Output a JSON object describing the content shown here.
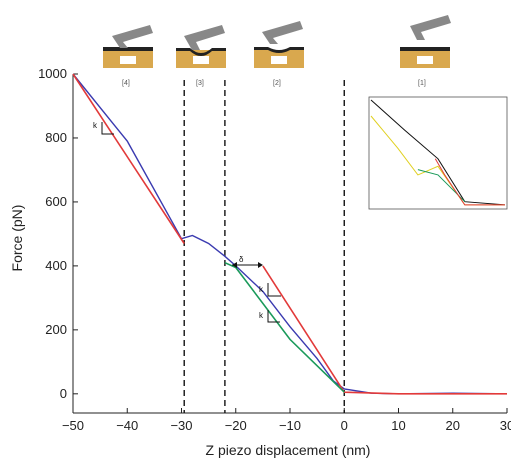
{
  "chart_data": {
    "type": "line",
    "xlabel": "Z piezo displacement (nm)",
    "ylabel": "Force (pN)",
    "xlim": [
      -50,
      30
    ],
    "ylim": [
      -60,
      1000
    ],
    "x_ticks": [
      -50,
      -40,
      -30,
      -20,
      -10,
      0,
      10,
      20,
      30
    ],
    "y_ticks": [
      0,
      200,
      400,
      600,
      800,
      1000
    ],
    "grid": false,
    "dashed_lines_x": [
      -29.5,
      -22,
      0
    ],
    "stage_labels": [
      "[4]",
      "[3]",
      "[2]",
      "[1]"
    ],
    "annotations": {
      "slope_k_upper": "k",
      "slope_k_mid1": "k",
      "slope_k_mid2": "k",
      "delta": "δ"
    },
    "series": [
      {
        "color": "#3a3ab0",
        "x": [
          -50,
          -40,
          -30,
          -28,
          -25,
          -22,
          -20,
          -15,
          -10,
          -5,
          -2,
          0,
          5,
          10,
          20,
          30
        ],
        "y": [
          1000,
          790,
          485,
          495,
          470,
          430,
          400,
          320,
          210,
          110,
          40,
          15,
          2,
          0,
          2,
          0
        ]
      },
      {
        "color": "#e23a3a",
        "x": [
          -50,
          -29.5
        ],
        "y": [
          1000,
          470
        ]
      },
      {
        "color": "#e23a3a",
        "x": [
          -15,
          0,
          10,
          30
        ],
        "y": [
          400,
          5,
          0,
          0
        ]
      },
      {
        "color": "#1a9a5a",
        "x": [
          -22,
          -20,
          -10,
          0
        ],
        "y": [
          410,
          395,
          170,
          5
        ]
      }
    ],
    "inset": {
      "series": [
        {
          "color": "#111111",
          "x": [
            0,
            0.25,
            0.5,
            0.7,
            1.0
          ],
          "y": [
            1.0,
            0.72,
            0.45,
            0.05,
            0.02
          ]
        },
        {
          "color": "#e0d020",
          "x": [
            0,
            0.2,
            0.35,
            0.5,
            0.7,
            1.0
          ],
          "y": [
            0.85,
            0.55,
            0.3,
            0.38,
            0.02,
            0.02
          ]
        },
        {
          "color": "#1a9a5a",
          "x": [
            0.35,
            0.5,
            0.7
          ],
          "y": [
            0.35,
            0.3,
            0.05
          ]
        },
        {
          "color": "#e23a3a",
          "x": [
            0.48,
            0.55,
            0.7,
            1.0
          ],
          "y": [
            0.45,
            0.3,
            0.02,
            0.02
          ]
        }
      ]
    }
  },
  "colors": {
    "cantilever": "#888888",
    "substrate": "#d9a84e",
    "membrane": "#222222"
  }
}
